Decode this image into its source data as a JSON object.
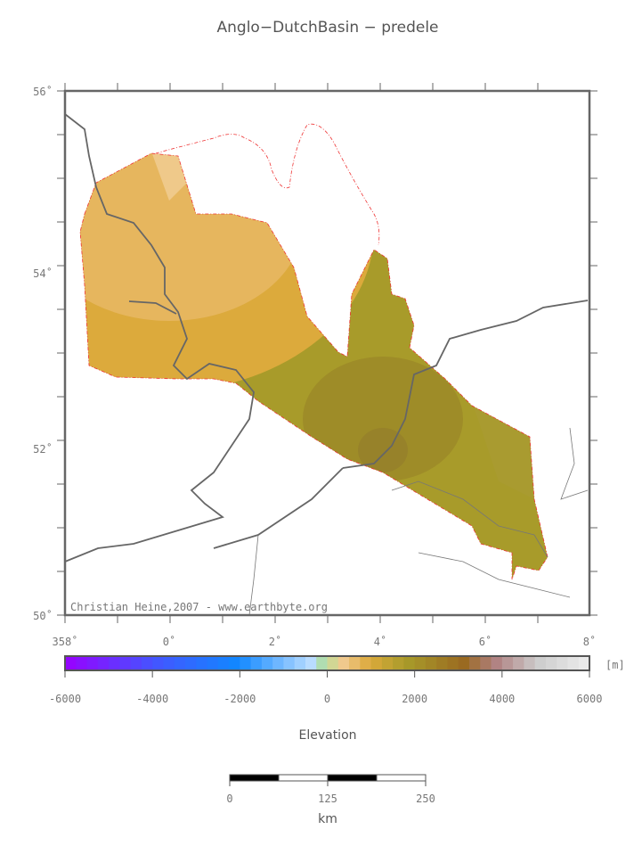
{
  "title": "Anglo−DutchBasin − predele",
  "map": {
    "lat_ticks": [
      "56˚",
      "54˚",
      "52˚",
      "50˚"
    ],
    "lon_ticks": [
      "358˚",
      "0˚",
      "2˚",
      "4˚",
      "6˚",
      "8˚"
    ],
    "credit": "Christian Heine,2007 - www.earthbyte.org"
  },
  "colorbar": {
    "unit": "[m]",
    "ticks": [
      -6000,
      -4000,
      -2000,
      0,
      2000,
      4000,
      6000
    ],
    "label": "Elevation"
  },
  "scalebar": {
    "ticks": [
      0,
      125,
      250
    ],
    "unit": "km"
  }
}
